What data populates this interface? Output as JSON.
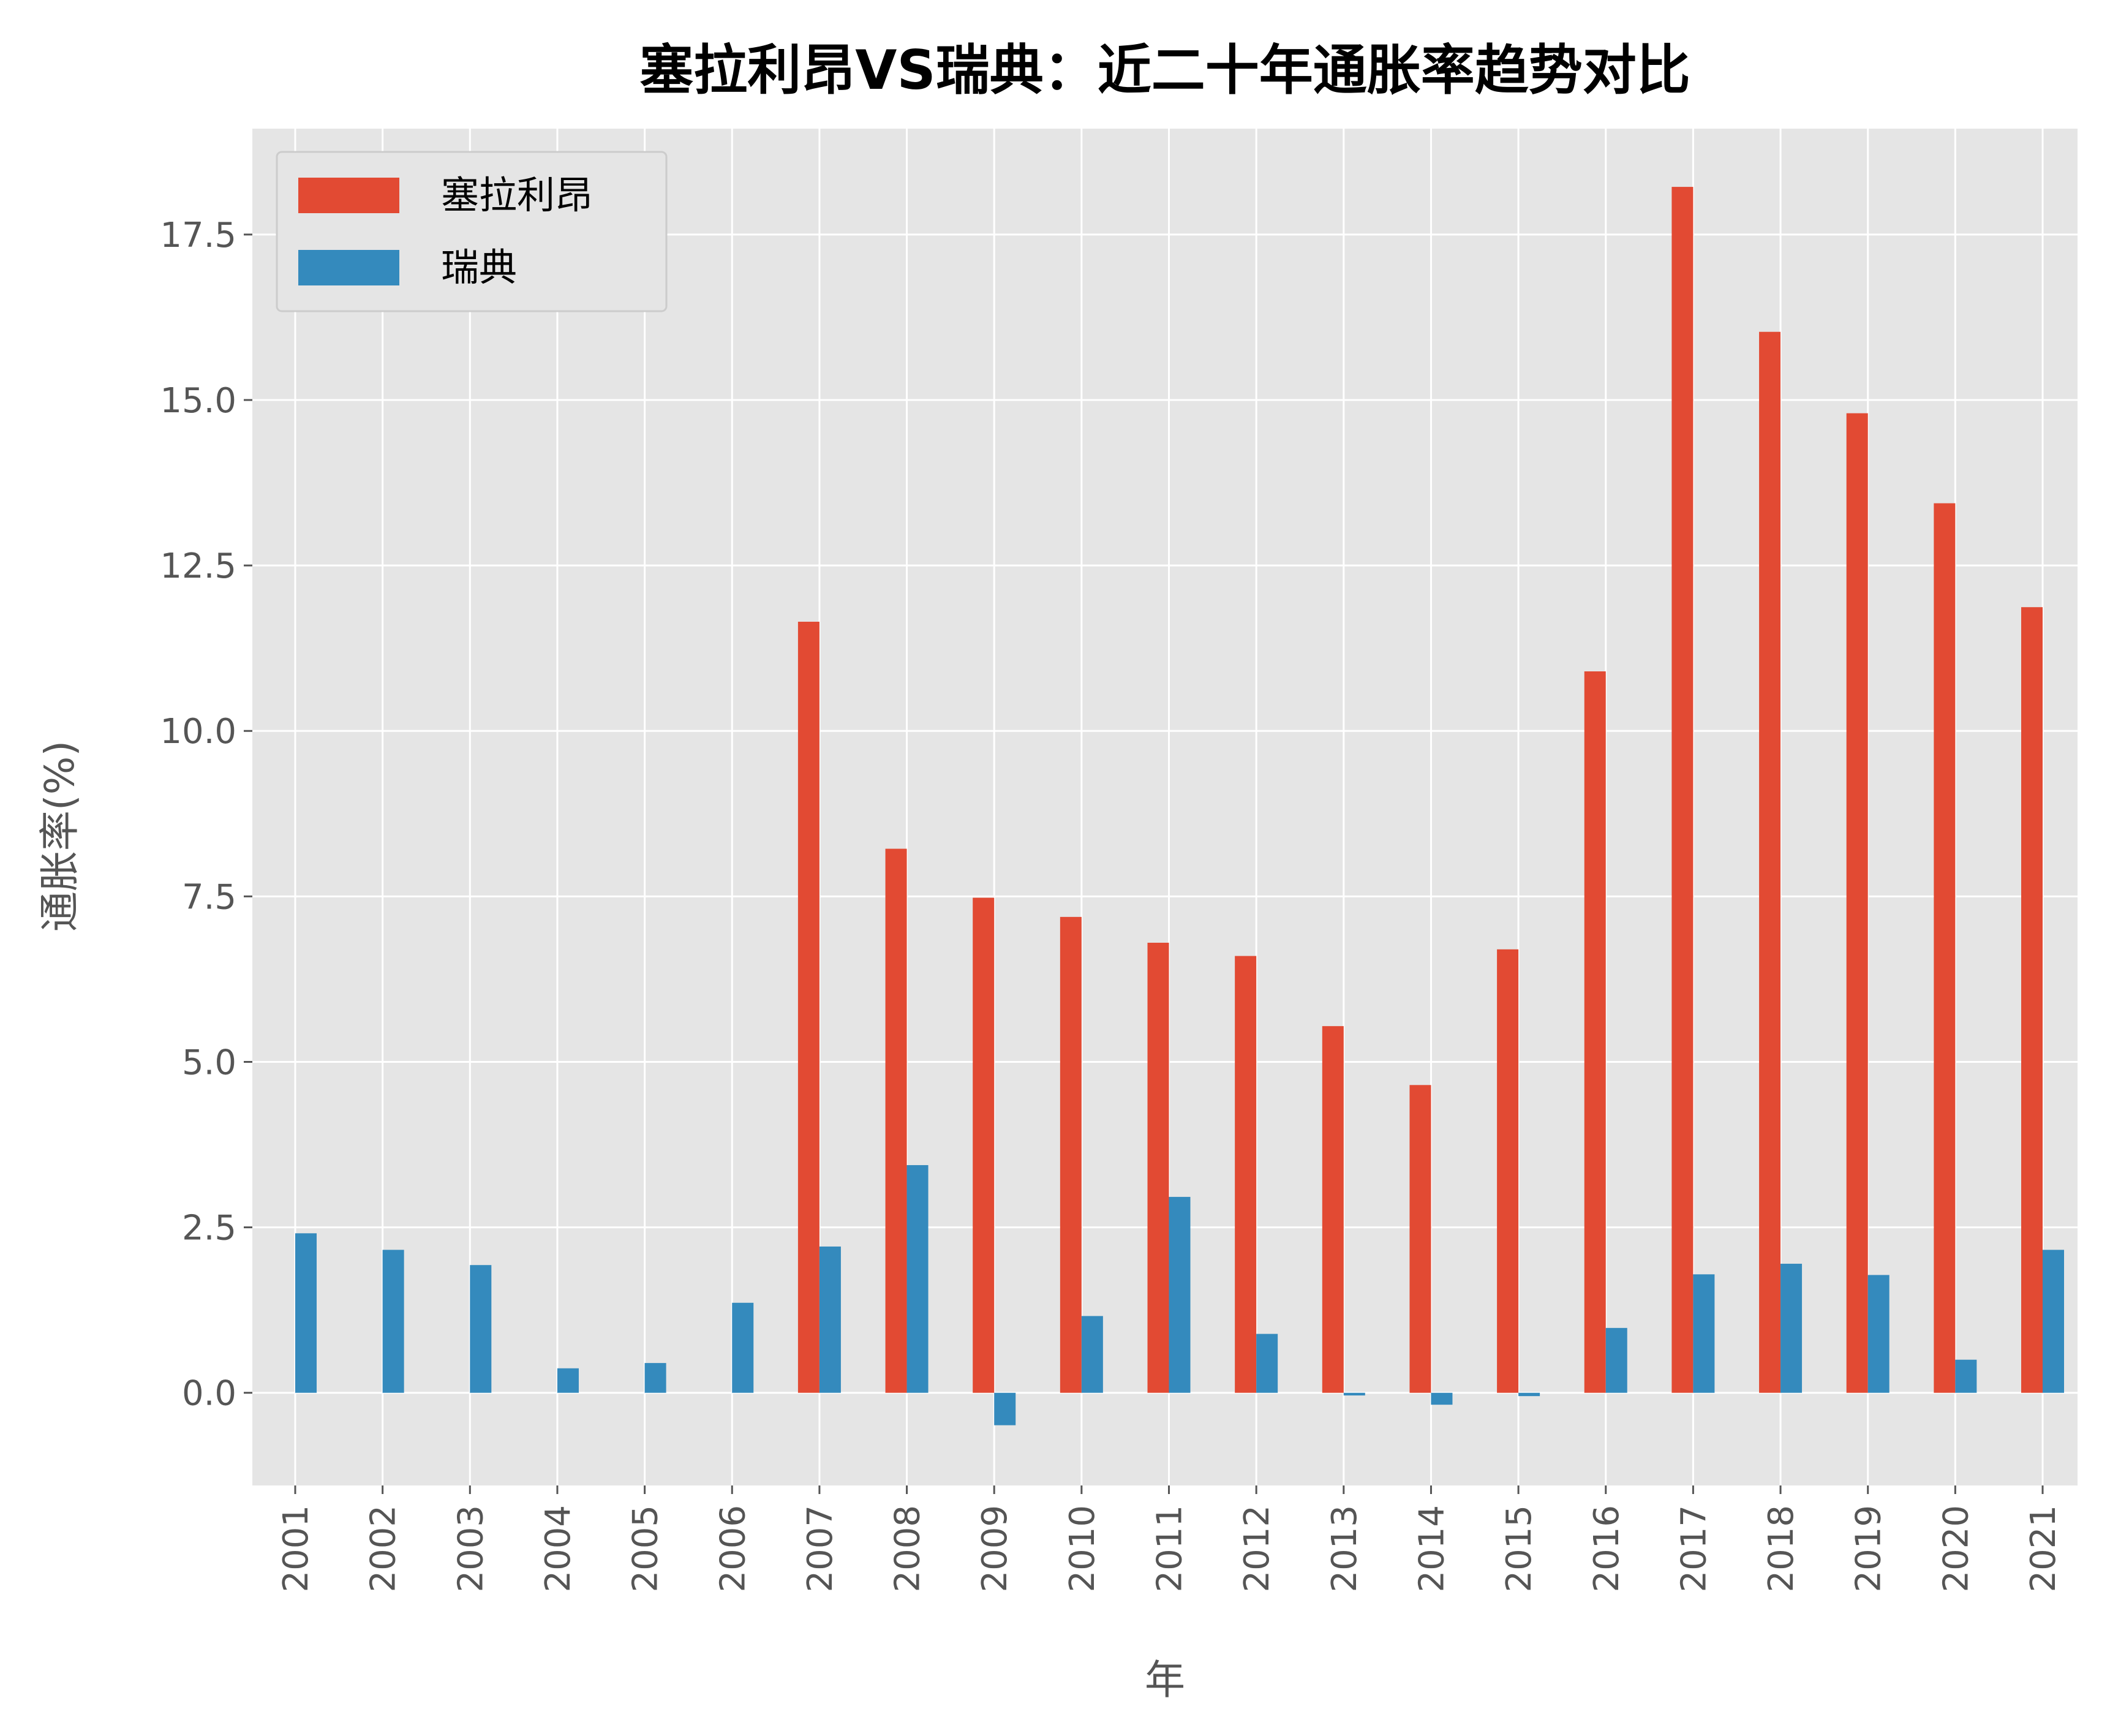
{
  "chart_data": {
    "type": "bar",
    "title": "塞拉利昂VS瑞典：近二十年通胀率趋势对比",
    "xlabel": "年",
    "ylabel": "通胀率(%)",
    "ylim": [
      -1.4,
      19.1
    ],
    "yticks": [
      0.0,
      2.5,
      5.0,
      7.5,
      10.0,
      12.5,
      15.0,
      17.5
    ],
    "ytick_labels": [
      "0.0",
      "2.5",
      "5.0",
      "7.5",
      "10.0",
      "12.5",
      "15.0",
      "17.5"
    ],
    "grid": true,
    "legend_position": "top-left",
    "categories": [
      "2001",
      "2002",
      "2003",
      "2004",
      "2005",
      "2006",
      "2007",
      "2008",
      "2009",
      "2010",
      "2011",
      "2012",
      "2013",
      "2014",
      "2015",
      "2016",
      "2017",
      "2018",
      "2019",
      "2020",
      "2021"
    ],
    "series": [
      {
        "name": "塞拉利昂",
        "color": "#E24A33",
        "values": [
          null,
          null,
          null,
          null,
          null,
          null,
          11.65,
          8.22,
          7.48,
          7.19,
          6.8,
          6.6,
          5.54,
          4.65,
          6.7,
          10.9,
          18.22,
          16.03,
          14.8,
          13.44,
          11.87
        ]
      },
      {
        "name": "瑞典",
        "color": "#348ABD",
        "values": [
          2.41,
          2.16,
          1.93,
          0.37,
          0.45,
          1.36,
          2.21,
          3.44,
          -0.49,
          1.16,
          2.96,
          0.89,
          -0.04,
          -0.18,
          -0.05,
          0.98,
          1.79,
          1.95,
          1.78,
          0.5,
          2.16
        ]
      }
    ]
  }
}
